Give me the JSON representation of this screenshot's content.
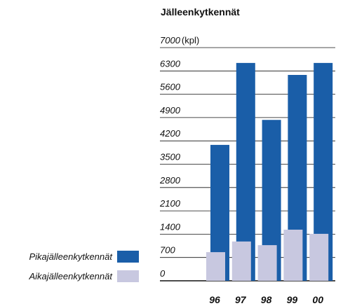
{
  "chart_data": {
    "type": "bar",
    "title": "Jälleenkytkennät",
    "y_unit": "(kpl)",
    "categories": [
      "96",
      "97",
      "98",
      "99",
      "00"
    ],
    "series": [
      {
        "name": "Pikajälleenkytkennät",
        "color": "#1a5ea8",
        "values": [
          4080,
          6540,
          4830,
          6180,
          6540
        ]
      },
      {
        "name": "Aikajälleenkytkennät",
        "color": "#c8c8e0",
        "values": [
          860,
          1180,
          1070,
          1535,
          1410
        ]
      }
    ],
    "ylim": [
      0,
      7000
    ],
    "yticks": [
      0,
      700,
      1400,
      2100,
      2800,
      3500,
      4200,
      4900,
      5600,
      6300,
      7000
    ],
    "grid": true
  }
}
